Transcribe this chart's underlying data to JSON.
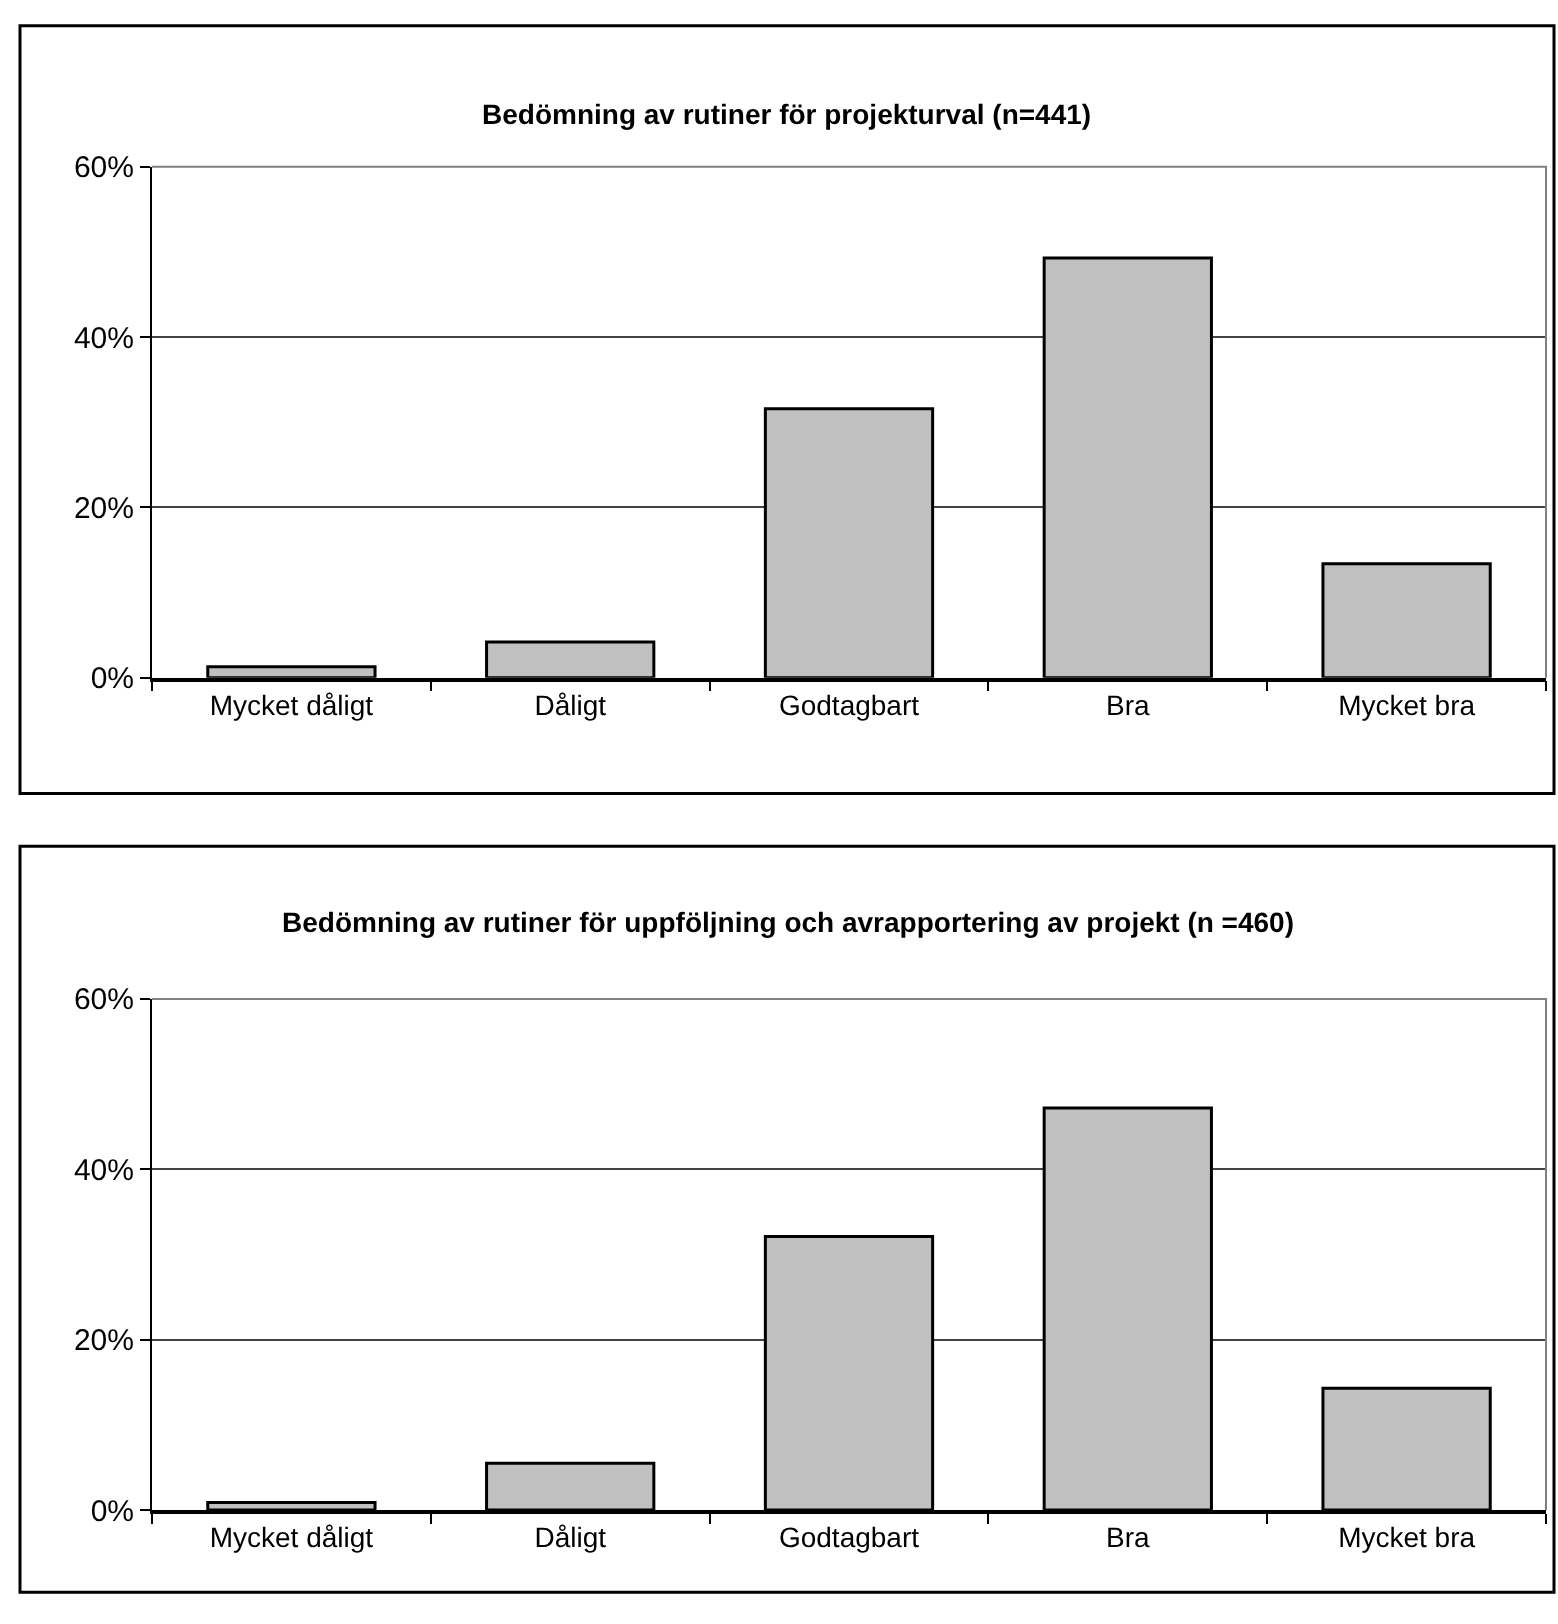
{
  "chart_data": [
    {
      "type": "bar",
      "title": "Bedömning av rutiner för projekturval (n=441)",
      "categories": [
        "Mycket dåligt",
        "Dåligt",
        "Godtagbart",
        "Bra",
        "Mycket bra"
      ],
      "values": [
        1.3,
        4.2,
        31.6,
        49.3,
        13.4
      ],
      "color": "#c0c0c0",
      "ylim": [
        0,
        60
      ],
      "yticks": [
        {
          "value": 0,
          "label": "0%"
        },
        {
          "value": 20,
          "label": "20%"
        },
        {
          "value": 40,
          "label": "40%"
        },
        {
          "value": 60,
          "label": "60%"
        }
      ],
      "grid": "y",
      "legend": false
    },
    {
      "type": "bar",
      "title": "Bedömning av rutiner för uppföljning och avrapportering av projekt (n =460)",
      "categories": [
        "Mycket dåligt",
        "Dåligt",
        "Godtagbart",
        "Bra",
        "Mycket bra"
      ],
      "values": [
        0.9,
        5.5,
        32.1,
        47.2,
        14.3
      ],
      "color": "#c0c0c0",
      "ylim": [
        0,
        60
      ],
      "yticks": [
        {
          "value": 0,
          "label": "0%"
        },
        {
          "value": 20,
          "label": "20%"
        },
        {
          "value": 40,
          "label": "40%"
        },
        {
          "value": 60,
          "label": "60%"
        }
      ],
      "grid": "y",
      "legend": false
    }
  ]
}
